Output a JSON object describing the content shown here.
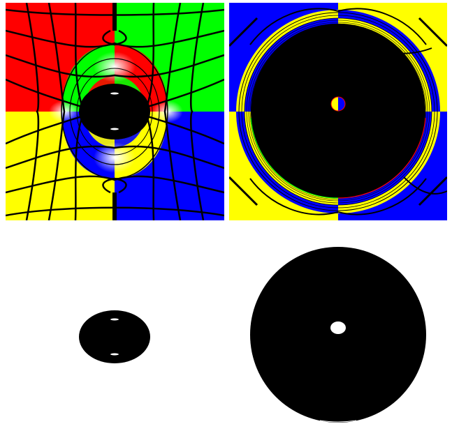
{
  "figure": {
    "panels": [
      {
        "id": "panel-top-left",
        "quadrant_colors": [
          "#ff0000",
          "#00ff00",
          "#ffff00",
          "#0000ff"
        ]
      },
      {
        "id": "panel-top-right",
        "quadrant_colors": [
          "#0000ff",
          "#ffff00",
          "#0000ff",
          "#ffff00"
        ]
      },
      {
        "id": "panel-bottom-left",
        "shadow_color": "#000000"
      },
      {
        "id": "panel-bottom-right",
        "shadow_color": "#000000"
      }
    ],
    "colors": {
      "red": "#ff0000",
      "green": "#00ff00",
      "yellow": "#ffff00",
      "blue": "#0000ff",
      "black": "#000000",
      "white": "#ffffff"
    }
  }
}
